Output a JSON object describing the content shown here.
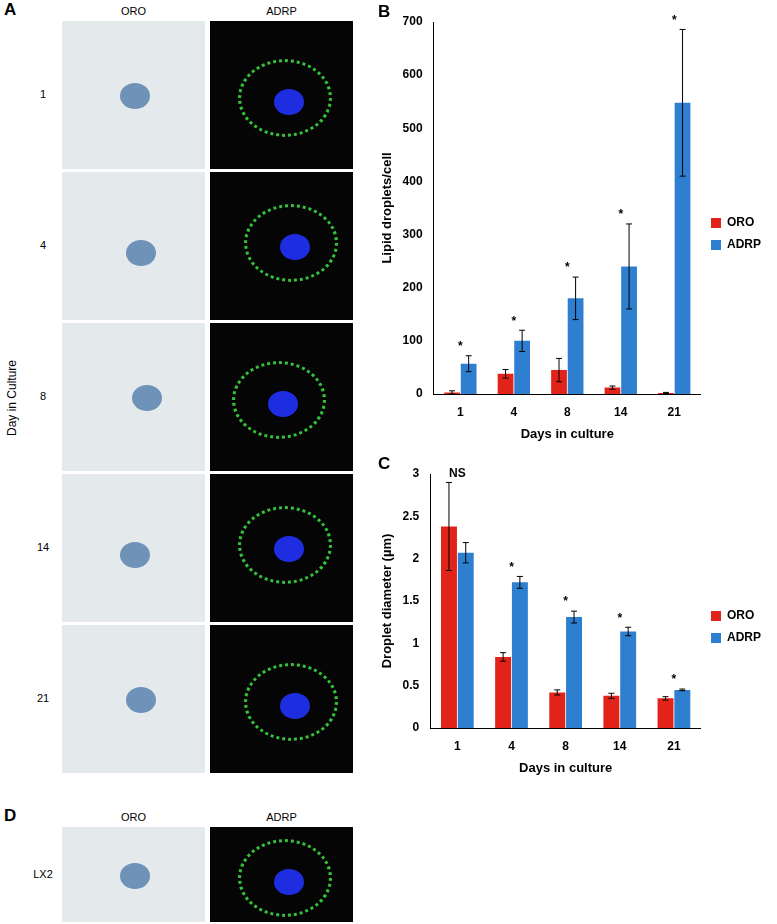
{
  "image_panels": [
    {
      "panel_label": "A",
      "columns": [
        "ORO",
        "ADRP"
      ],
      "rows": [
        "1",
        "4",
        "8",
        "14",
        "21"
      ],
      "row_axis_label": "Day in Culture"
    },
    {
      "panel_label": "D",
      "columns": [
        "ORO",
        "ADRP"
      ],
      "rows": [
        "LX2"
      ]
    }
  ],
  "chart_data": [
    {
      "panel_label": "B",
      "type": "bar",
      "categories": [
        "1",
        "4",
        "8",
        "14",
        "21"
      ],
      "x_label": "Days in culture",
      "y_label": "Lipid droplets/cell",
      "ylim": [
        0,
        700
      ],
      "yticks": [
        0,
        100,
        200,
        300,
        400,
        500,
        600,
        700
      ],
      "grid": false,
      "legend": "right",
      "annotations": [
        "*",
        "*",
        "*",
        "*",
        "*"
      ],
      "series": [
        {
          "name": "ORO",
          "color": "#e2231a",
          "values": [
            3,
            38,
            45,
            12,
            2
          ],
          "errors": [
            3,
            8,
            22,
            3,
            1
          ]
        },
        {
          "name": "ADRP",
          "color": "#2f7fd0",
          "values": [
            57,
            100,
            180,
            240,
            548
          ],
          "errors": [
            15,
            20,
            40,
            80,
            138
          ]
        }
      ]
    },
    {
      "panel_label": "C",
      "type": "bar",
      "categories": [
        "1",
        "4",
        "8",
        "14",
        "21"
      ],
      "x_label": "Days in culture",
      "y_label": "Droplet diameter (µm)",
      "ylim": [
        0,
        3
      ],
      "yticks": [
        0,
        0.5,
        1,
        1.5,
        2,
        2.5,
        3
      ],
      "grid": false,
      "legend": "right",
      "annotations": [
        "NS",
        "*",
        "*",
        "*",
        "*"
      ],
      "series": [
        {
          "name": "ORO",
          "color": "#e2231a",
          "values": [
            2.38,
            0.84,
            0.42,
            0.38,
            0.35
          ],
          "errors": [
            0.52,
            0.05,
            0.03,
            0.03,
            0.02
          ]
        },
        {
          "name": "ADRP",
          "color": "#2f7fd0",
          "values": [
            2.07,
            1.72,
            1.31,
            1.14,
            0.45
          ],
          "errors": [
            0.12,
            0.07,
            0.07,
            0.05,
            0.01
          ]
        }
      ]
    }
  ]
}
